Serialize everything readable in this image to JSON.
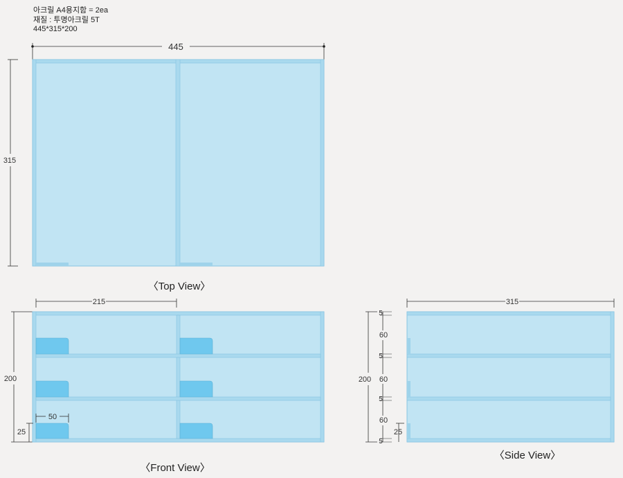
{
  "notes": {
    "line1": "아크릴 A4용지함 = 2ea",
    "line2": "재질 : 투명아크릴 5T",
    "line3": "445*315*200"
  },
  "top_view": {
    "caption": "〈Top View〉",
    "width_label": "445",
    "height_label": "315"
  },
  "front_view": {
    "caption": "〈Front View〉",
    "compartment_width_label": "215",
    "height_label": "200",
    "tab_width_label": "50",
    "tab_height_label": "25"
  },
  "side_view": {
    "caption": "〈Side View〉",
    "depth_label": "315",
    "height_label": "200",
    "thickness_label_1": "5",
    "shelf_gap_label_1": "60",
    "thickness_label_2": "5",
    "shelf_gap_label_2": "60",
    "thickness_label_3": "5",
    "shelf_gap_label_3": "60",
    "thickness_label_4": "5",
    "tab_height_label": "25"
  },
  "colors": {
    "acrylic_fill": "#c1e4f3",
    "acrylic_edge": "#86c4e1",
    "panel": "#9fd3ea",
    "tab": "#6fc8ee",
    "dimension_line": "#333333"
  }
}
